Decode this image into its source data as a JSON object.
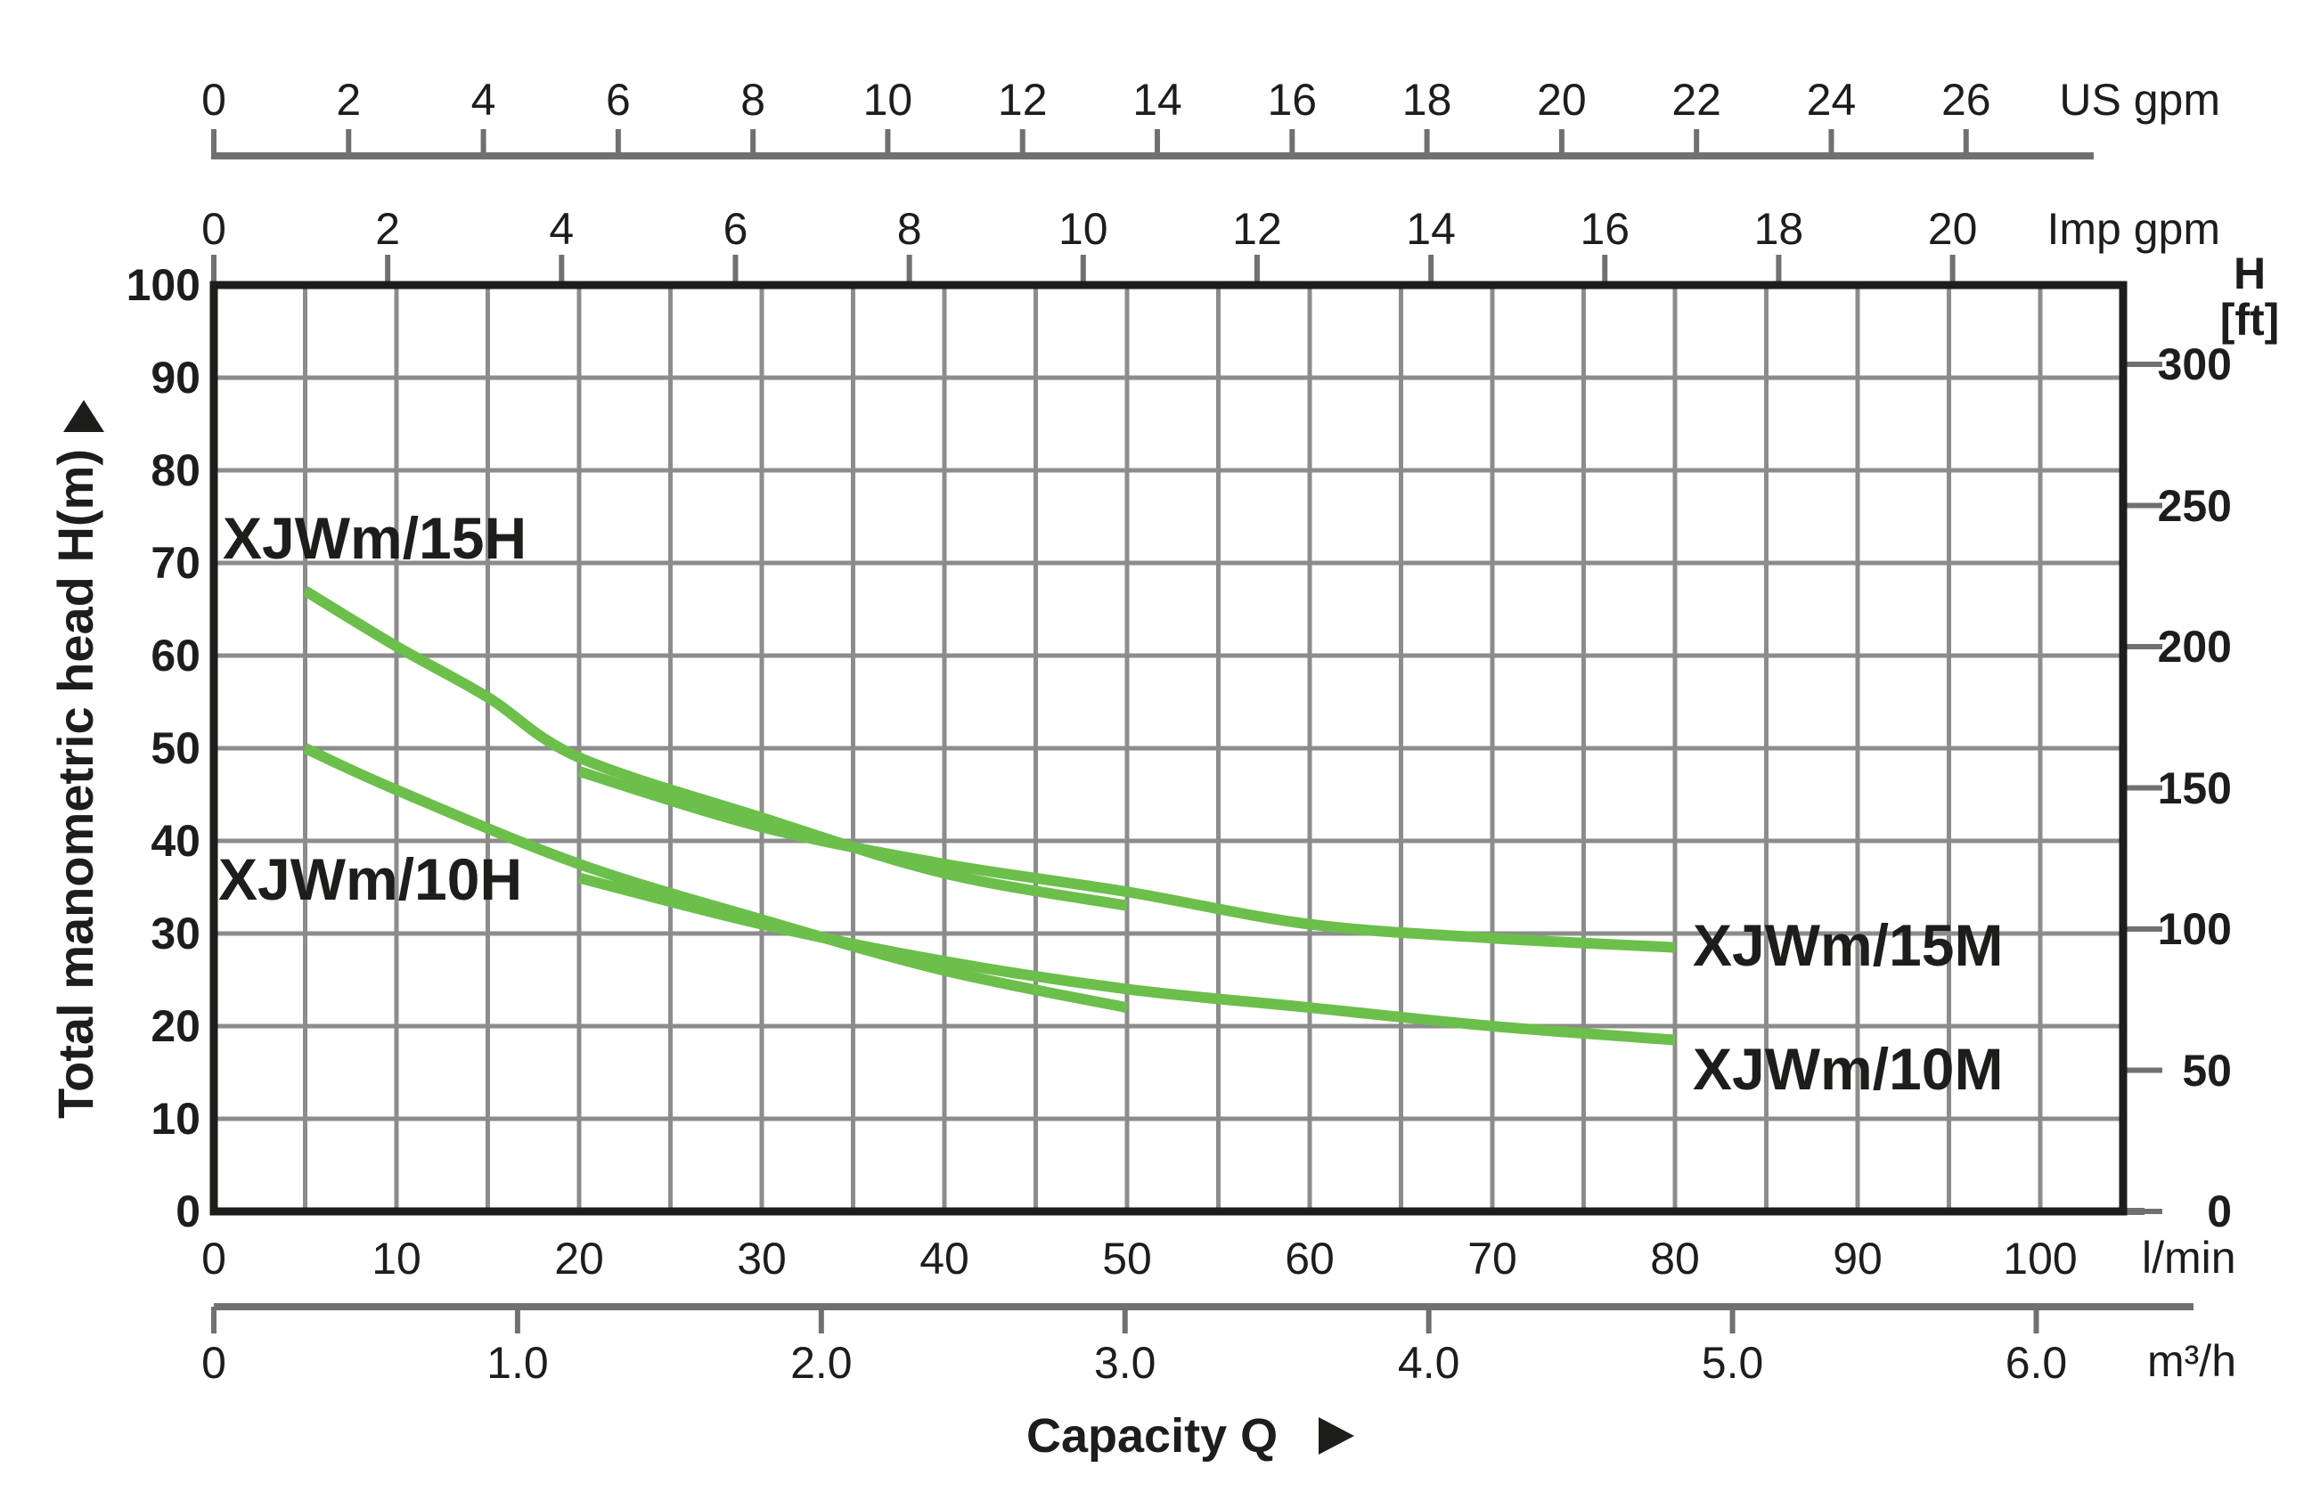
{
  "chart_data": {
    "type": "line",
    "title": "",
    "xlabel": "Capacity Q",
    "ylabel": "Total manometric head H(m)",
    "grid": true,
    "legend_position": "inline-curve-labels",
    "x_range_lmin": [
      0,
      104.5
    ],
    "y_range_m": [
      0,
      100
    ],
    "colors": {
      "curve_green": "#6bbf4a",
      "grid_gray": "#8c8c8c",
      "axis_gray": "#707070",
      "frame_black": "#1d1d1b"
    },
    "x_axes": [
      {
        "label": "US gpm",
        "ticks": [
          0,
          2,
          4,
          6,
          8,
          10,
          12,
          14,
          16,
          18,
          20,
          22,
          24,
          26
        ],
        "lmin_per_unit": 3.69
      },
      {
        "label": "Imp gpm",
        "ticks": [
          0,
          2,
          4,
          6,
          8,
          10,
          12,
          14,
          16,
          18,
          20
        ],
        "lmin_per_unit": 4.76
      },
      {
        "label": "l/min",
        "ticks": [
          0,
          10,
          20,
          30,
          40,
          50,
          60,
          70,
          80,
          90,
          100
        ],
        "lmin_per_unit": 1
      },
      {
        "label": "m³/h",
        "tick_labels": [
          "0",
          "1.0",
          "2.0",
          "3.0",
          "4.0",
          "5.0",
          "6.0"
        ],
        "tick_values": [
          0,
          1,
          2,
          3,
          4,
          5,
          6
        ],
        "lmin_per_unit": 16.63
      }
    ],
    "y_axes": [
      {
        "label": "Total manometric head H(m)",
        "ticks": [
          0,
          10,
          20,
          30,
          40,
          50,
          60,
          70,
          80,
          90,
          100
        ],
        "m_per_unit": 1
      },
      {
        "label_lines": [
          "H",
          "[ft]"
        ],
        "ticks": [
          0,
          50,
          100,
          150,
          200,
          250,
          300
        ],
        "m_per_unit": 0.3048
      }
    ],
    "series": [
      {
        "name": "XJWm/15H",
        "points_lmin_m": [
          [
            5,
            67
          ],
          [
            10,
            61
          ],
          [
            15,
            55.5
          ],
          [
            20,
            49
          ],
          [
            30,
            42.5
          ],
          [
            40,
            36.5
          ],
          [
            50,
            33
          ]
        ]
      },
      {
        "name": "XJWm/15M",
        "points_lmin_m": [
          [
            20,
            47.5
          ],
          [
            30,
            41.5
          ],
          [
            40,
            37.5
          ],
          [
            50,
            34.5
          ],
          [
            60,
            31
          ],
          [
            70,
            29.5
          ],
          [
            80,
            28.5
          ]
        ]
      },
      {
        "name": "XJWm/10H",
        "points_lmin_m": [
          [
            5,
            50
          ],
          [
            10,
            45.5
          ],
          [
            20,
            37.5
          ],
          [
            30,
            31.5
          ],
          [
            40,
            26
          ],
          [
            50,
            22
          ]
        ]
      },
      {
        "name": "XJWm/10M",
        "points_lmin_m": [
          [
            20,
            36
          ],
          [
            30,
            31
          ],
          [
            40,
            27
          ],
          [
            50,
            24
          ],
          [
            60,
            22
          ],
          [
            70,
            20
          ],
          [
            80,
            18.5
          ]
        ]
      }
    ]
  }
}
